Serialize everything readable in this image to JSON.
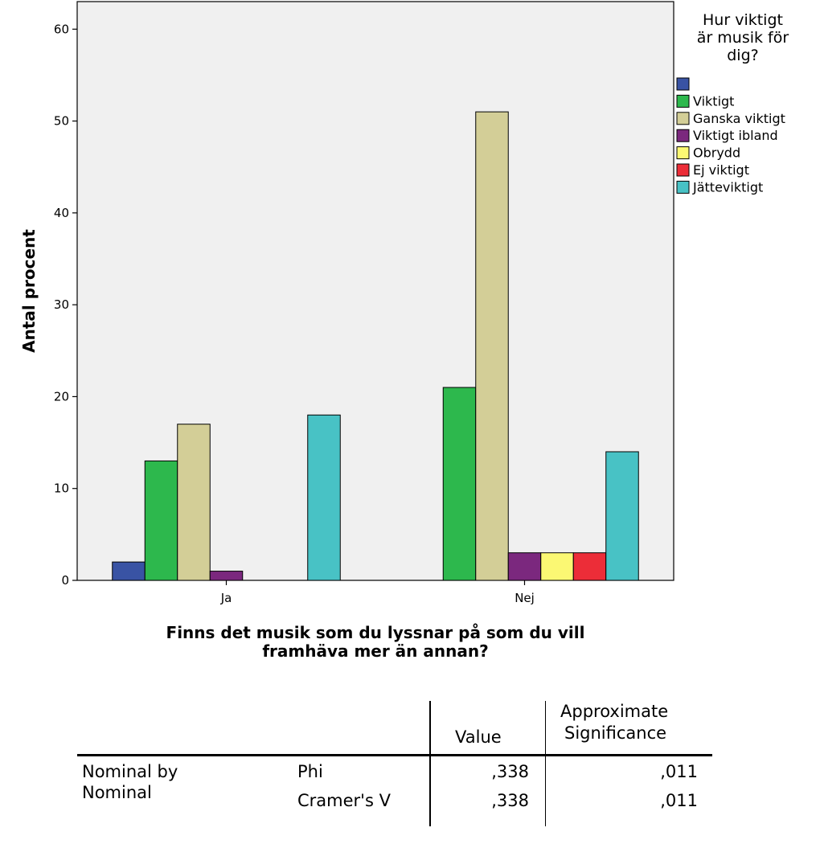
{
  "chart_data": {
    "type": "bar",
    "xlabel": "Finns det musik som du lyssnar på som du vill framhäva mer än annan?",
    "ylabel": "Antal procent",
    "categories": [
      "Ja",
      "Nej"
    ],
    "ylim": [
      0,
      63
    ],
    "yticks": [
      0,
      10,
      20,
      30,
      40,
      50,
      60
    ],
    "ytick_labels": [
      "0",
      "10",
      "20",
      "30",
      "40",
      "50",
      "60"
    ],
    "grid": false,
    "legend_title": "Hur viktigt är musik för dig?",
    "legend_title_lines": [
      "Hur viktigt",
      "är musik för",
      "dig?"
    ],
    "legend_placement": "right",
    "series": [
      {
        "name": "",
        "color": "#3953a4",
        "values": [
          2,
          0
        ]
      },
      {
        "name": "Viktigt",
        "color": "#2db84d",
        "values": [
          13,
          21
        ]
      },
      {
        "name": "Ganska viktigt",
        "color": "#d3ce97",
        "values": [
          17,
          51
        ]
      },
      {
        "name": "Viktigt ibland",
        "color": "#7b287e",
        "values": [
          1,
          3
        ]
      },
      {
        "name": "Obrydd",
        "color": "#fbf873",
        "values": [
          0,
          3
        ]
      },
      {
        "name": "Ej viktigt",
        "color": "#ec2d38",
        "values": [
          0,
          3
        ]
      },
      {
        "name": "Jätteviktigt",
        "color": "#48c2c5",
        "values": [
          18,
          14
        ]
      }
    ],
    "plot_background": "#f0f0f0"
  },
  "stats_table": {
    "col_value": "Value",
    "col_approx_line1": "Approximate",
    "col_approx_line2": "Significance",
    "row_group_line1": "Nominal by",
    "row_group_line2": "Nominal",
    "rows": [
      {
        "label": "Phi",
        "value": ",338",
        "significance": ",011"
      },
      {
        "label": "Cramer's V",
        "value": ",338",
        "significance": ",011"
      }
    ]
  }
}
